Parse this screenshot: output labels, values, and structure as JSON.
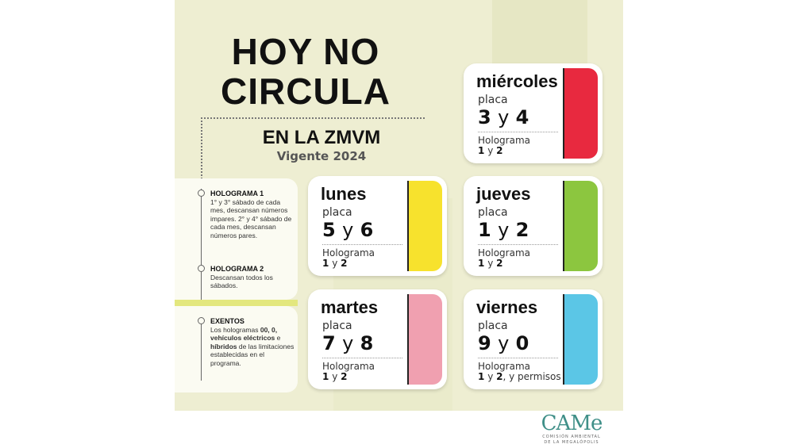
{
  "title": [
    "HOY NO",
    "CIRCULA"
  ],
  "subtitle": "EN LA ZMVM",
  "vigente": "Vigente 2024",
  "notes": [
    {
      "heading": "HOLOGRAMA 1",
      "text": "1° y 3° sábado de cada mes, descansan números impares. 2° y 4° sábado de cada mes, descansan números pares."
    },
    {
      "heading": "HOLOGRAMA 2",
      "text": "Descansan todos los sábados."
    },
    {
      "heading": "EXENTOS",
      "pre": "Los hologramas ",
      "b1": "00, 0, vehículos eléctricos",
      "mid": " e ",
      "b2": "híbridos",
      "post": " de las limitaciones establecidas en el programa."
    }
  ],
  "cards": [
    {
      "day": "miércoles",
      "placa": "placa",
      "n1": "3",
      "y": "y",
      "n2": "4",
      "holo": "Holograma",
      "h1": "1",
      "hy": "y",
      "h2": "2",
      "extra": "",
      "color": "#e8293f"
    },
    {
      "day": "lunes",
      "placa": "placa",
      "n1": "5",
      "y": "y",
      "n2": "6",
      "holo": "Holograma",
      "h1": "1",
      "hy": "y",
      "h2": "2",
      "extra": "",
      "color": "#f7e22d"
    },
    {
      "day": "jueves",
      "placa": "placa",
      "n1": "1",
      "y": "y",
      "n2": "2",
      "holo": "Holograma",
      "h1": "1",
      "hy": "y",
      "h2": "2",
      "extra": "",
      "color": "#8cc63f"
    },
    {
      "day": "martes",
      "placa": "placa",
      "n1": "7",
      "y": "y",
      "n2": "8",
      "holo": "Holograma",
      "h1": "1",
      "hy": "y",
      "h2": "2",
      "extra": "",
      "color": "#f0a0b0"
    },
    {
      "day": "viernes",
      "placa": "placa",
      "n1": "9",
      "y": "y",
      "n2": "0",
      "holo": "Holograma",
      "h1": "1",
      "hy": "y",
      "h2": "2",
      "extra": ", y permisos",
      "color": "#5bc6e6"
    }
  ],
  "logo": {
    "text": "CAMe",
    "line1": "COMISIÓN AMBIENTAL",
    "line2": "DE LA MEGALÓPOLIS"
  }
}
